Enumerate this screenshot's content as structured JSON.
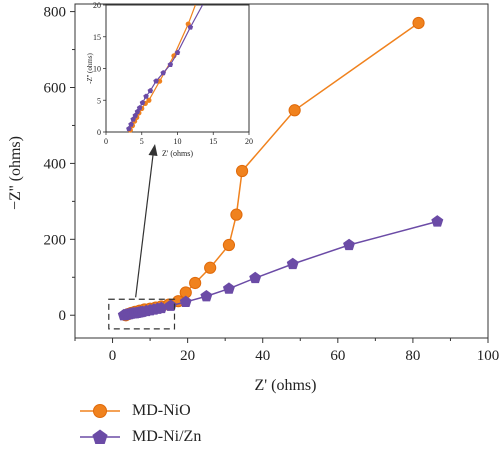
{
  "chart_data": [
    {
      "type": "scatter",
      "title": "",
      "xlabel": "Z' (ohms)",
      "ylabel": "−Z'' (ohms)",
      "xlim": [
        -10,
        100
      ],
      "ylim": [
        -60,
        820
      ],
      "x_ticks": [
        "0",
        "20",
        "40",
        "60",
        "80",
        "100"
      ],
      "y_ticks": [
        "0",
        "200",
        "400",
        "600",
        "800"
      ],
      "grid": false,
      "legend_position": "bottom-left",
      "annotation": "dashed box around the low-impedance region with an arrow pointing to the inset",
      "series": [
        {
          "name": "MD-NiO",
          "marker": "circle",
          "color": "#f0821e",
          "x": [
            3.5,
            4.2,
            5.0,
            6.0,
            7.2,
            8.5,
            10.0,
            11.5,
            13.0,
            15.0,
            17.5,
            19.5,
            22.0,
            26.0,
            31.0,
            33.0,
            34.5,
            48.5,
            81.5
          ],
          "y": [
            0,
            3,
            6,
            9,
            12,
            15,
            17,
            20,
            23,
            28,
            37,
            60,
            85,
            125,
            185,
            265,
            380,
            540,
            770
          ]
        },
        {
          "name": "MD-Ni/Zn",
          "marker": "pentagon",
          "color": "#6b4ba6",
          "x": [
            3.0,
            3.5,
            4.0,
            4.5,
            5.0,
            5.5,
            6.0,
            6.5,
            7.0,
            7.5,
            8.0,
            9.0,
            10.0,
            11.0,
            12.0,
            13.0,
            15.5,
            19.5,
            25.0,
            31.0,
            38.0,
            48.0,
            63.0,
            86.5
          ],
          "y": [
            0,
            1,
            2,
            3,
            4,
            5,
            5,
            6,
            7,
            8,
            9,
            11,
            13,
            15,
            17,
            19,
            25,
            35,
            50,
            70,
            98,
            135,
            185,
            247
          ]
        }
      ]
    },
    {
      "type": "scatter",
      "title": "",
      "xlabel": "Z' (ohms)",
      "ylabel": "-Z'' (ohms)",
      "xlim": [
        0,
        20
      ],
      "ylim": [
        0,
        20
      ],
      "x_ticks": [
        "0",
        "5",
        "10",
        "15",
        "20"
      ],
      "y_ticks": [
        "0",
        "5",
        "10",
        "15",
        "20"
      ],
      "grid": false,
      "series": [
        {
          "name": "MD-NiO",
          "color": "#f0821e",
          "x": [
            3.4,
            3.7,
            4.0,
            4.3,
            4.6,
            5.0,
            5.5,
            6.0,
            7.5,
            9.5,
            11.5
          ],
          "y": [
            0.3,
            1.0,
            1.7,
            2.3,
            3.0,
            3.7,
            4.5,
            5.0,
            8.0,
            12.0,
            17.0
          ],
          "line_to": [
            12.5,
            20
          ]
        },
        {
          "name": "MD-Ni/Zn",
          "color": "#6b4ba6",
          "x": [
            3.2,
            3.5,
            3.8,
            4.1,
            4.4,
            4.7,
            5.1,
            5.6,
            6.2,
            7.0,
            8.0,
            9.0,
            10.0,
            11.8
          ],
          "y": [
            0.5,
            1.2,
            2.0,
            2.6,
            3.2,
            3.8,
            4.6,
            5.6,
            6.5,
            8.0,
            9.3,
            10.6,
            12.5,
            16.5
          ],
          "line_to": [
            13.5,
            20
          ]
        }
      ]
    }
  ]
}
